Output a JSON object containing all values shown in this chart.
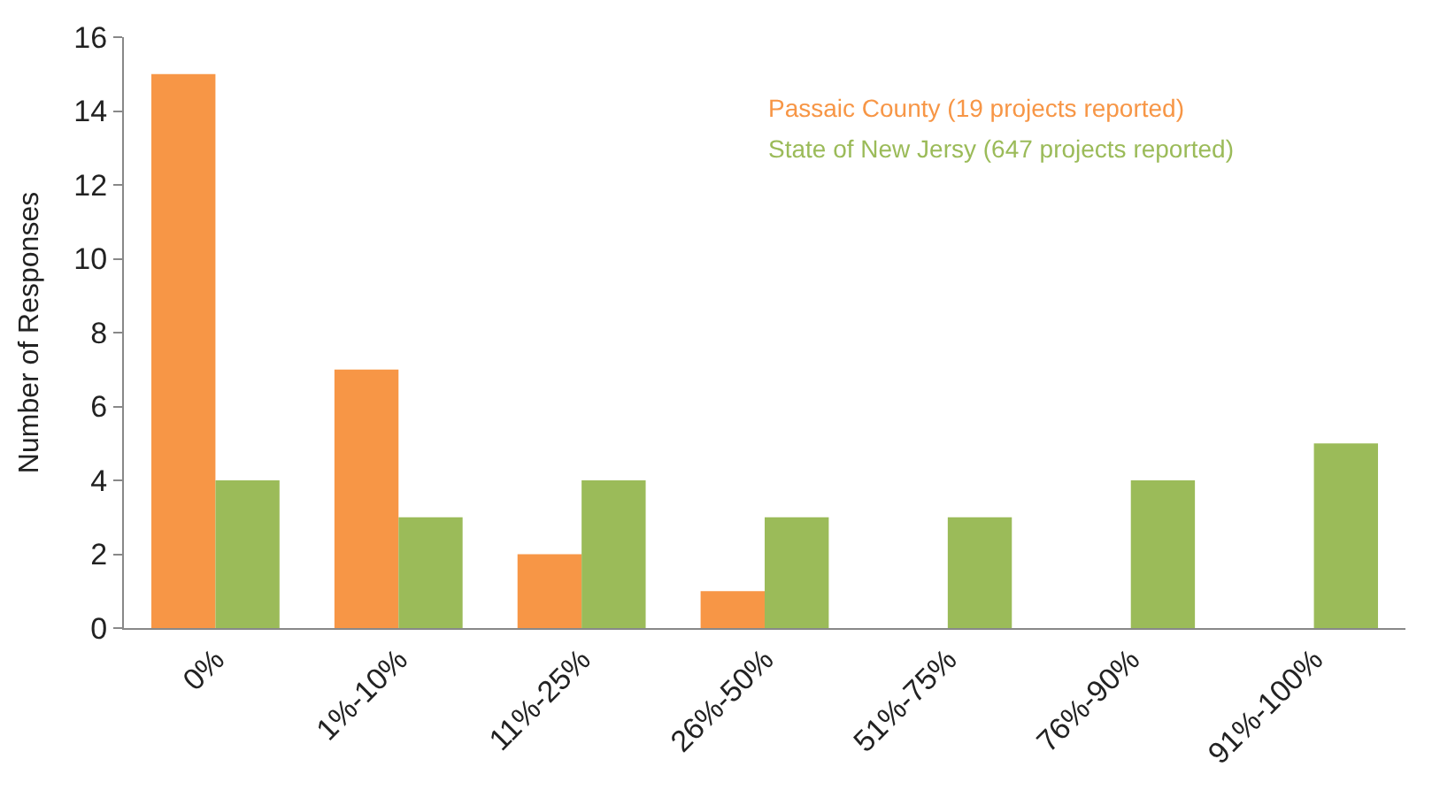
{
  "chart_data": {
    "type": "bar",
    "ylabel": "Number of Responses",
    "categories": [
      "0%",
      "1%-10%",
      "11%-25%",
      "26%-50%",
      "51%-75%",
      "76%-90%",
      "91%-100%"
    ],
    "series": [
      {
        "name": "Passaic County (19 projects reported)",
        "color": "#f79646",
        "values": [
          15,
          7,
          2,
          1,
          0,
          0,
          0
        ]
      },
      {
        "name": "State of New Jersy (647 projects reported)",
        "color": "#9bbb59",
        "values": [
          4,
          3,
          4,
          3,
          3,
          4,
          5
        ]
      }
    ],
    "ylim": [
      0,
      16
    ],
    "yticks": [
      0,
      2,
      4,
      6,
      8,
      10,
      12,
      14,
      16
    ],
    "legend": "top right"
  }
}
